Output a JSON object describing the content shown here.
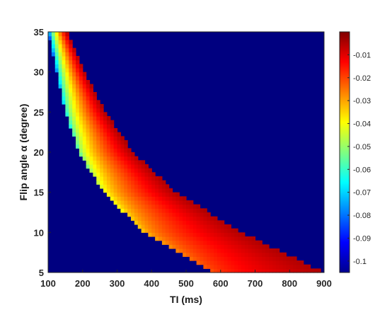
{
  "chart_data": {
    "type": "heatmap",
    "xlabel": "TI (ms)",
    "ylabel": "Flip angle α (degree)",
    "xlim": [
      100,
      900
    ],
    "ylim": [
      5,
      35
    ],
    "xticks": [
      "100",
      "200",
      "300",
      "400",
      "500",
      "600",
      "700",
      "800",
      "900"
    ],
    "yticks": [
      "5",
      "10",
      "15",
      "20",
      "25",
      "30",
      "35"
    ],
    "colormap": "jet",
    "clim": [
      -0.105,
      0.0
    ],
    "colorbar_ticks": [
      "-0.01",
      "-0.02",
      "-0.03",
      "-0.04",
      "-0.05",
      "-0.06",
      "-0.07",
      "-0.08",
      "-0.09",
      "-0.1"
    ],
    "background_value": -0.105,
    "band": {
      "description_points": [
        {
          "alpha": 35,
          "ti_low": 100,
          "ti_high": 155
        },
        {
          "alpha": 30,
          "ti_low": 125,
          "ti_high": 205
        },
        {
          "alpha": 25,
          "ti_low": 150,
          "ti_high": 265
        },
        {
          "alpha": 20,
          "ti_low": 190,
          "ti_high": 345
        },
        {
          "alpha": 15,
          "ti_low": 260,
          "ti_high": 470
        },
        {
          "alpha": 10,
          "ti_low": 380,
          "ti_high": 660
        },
        {
          "alpha": 5,
          "ti_low": 580,
          "ti_high": 900
        }
      ],
      "value_low_edge_at_alpha35": -0.095,
      "value_low_edge_at_alpha5": -0.022,
      "value_high_edge": -0.005
    }
  }
}
